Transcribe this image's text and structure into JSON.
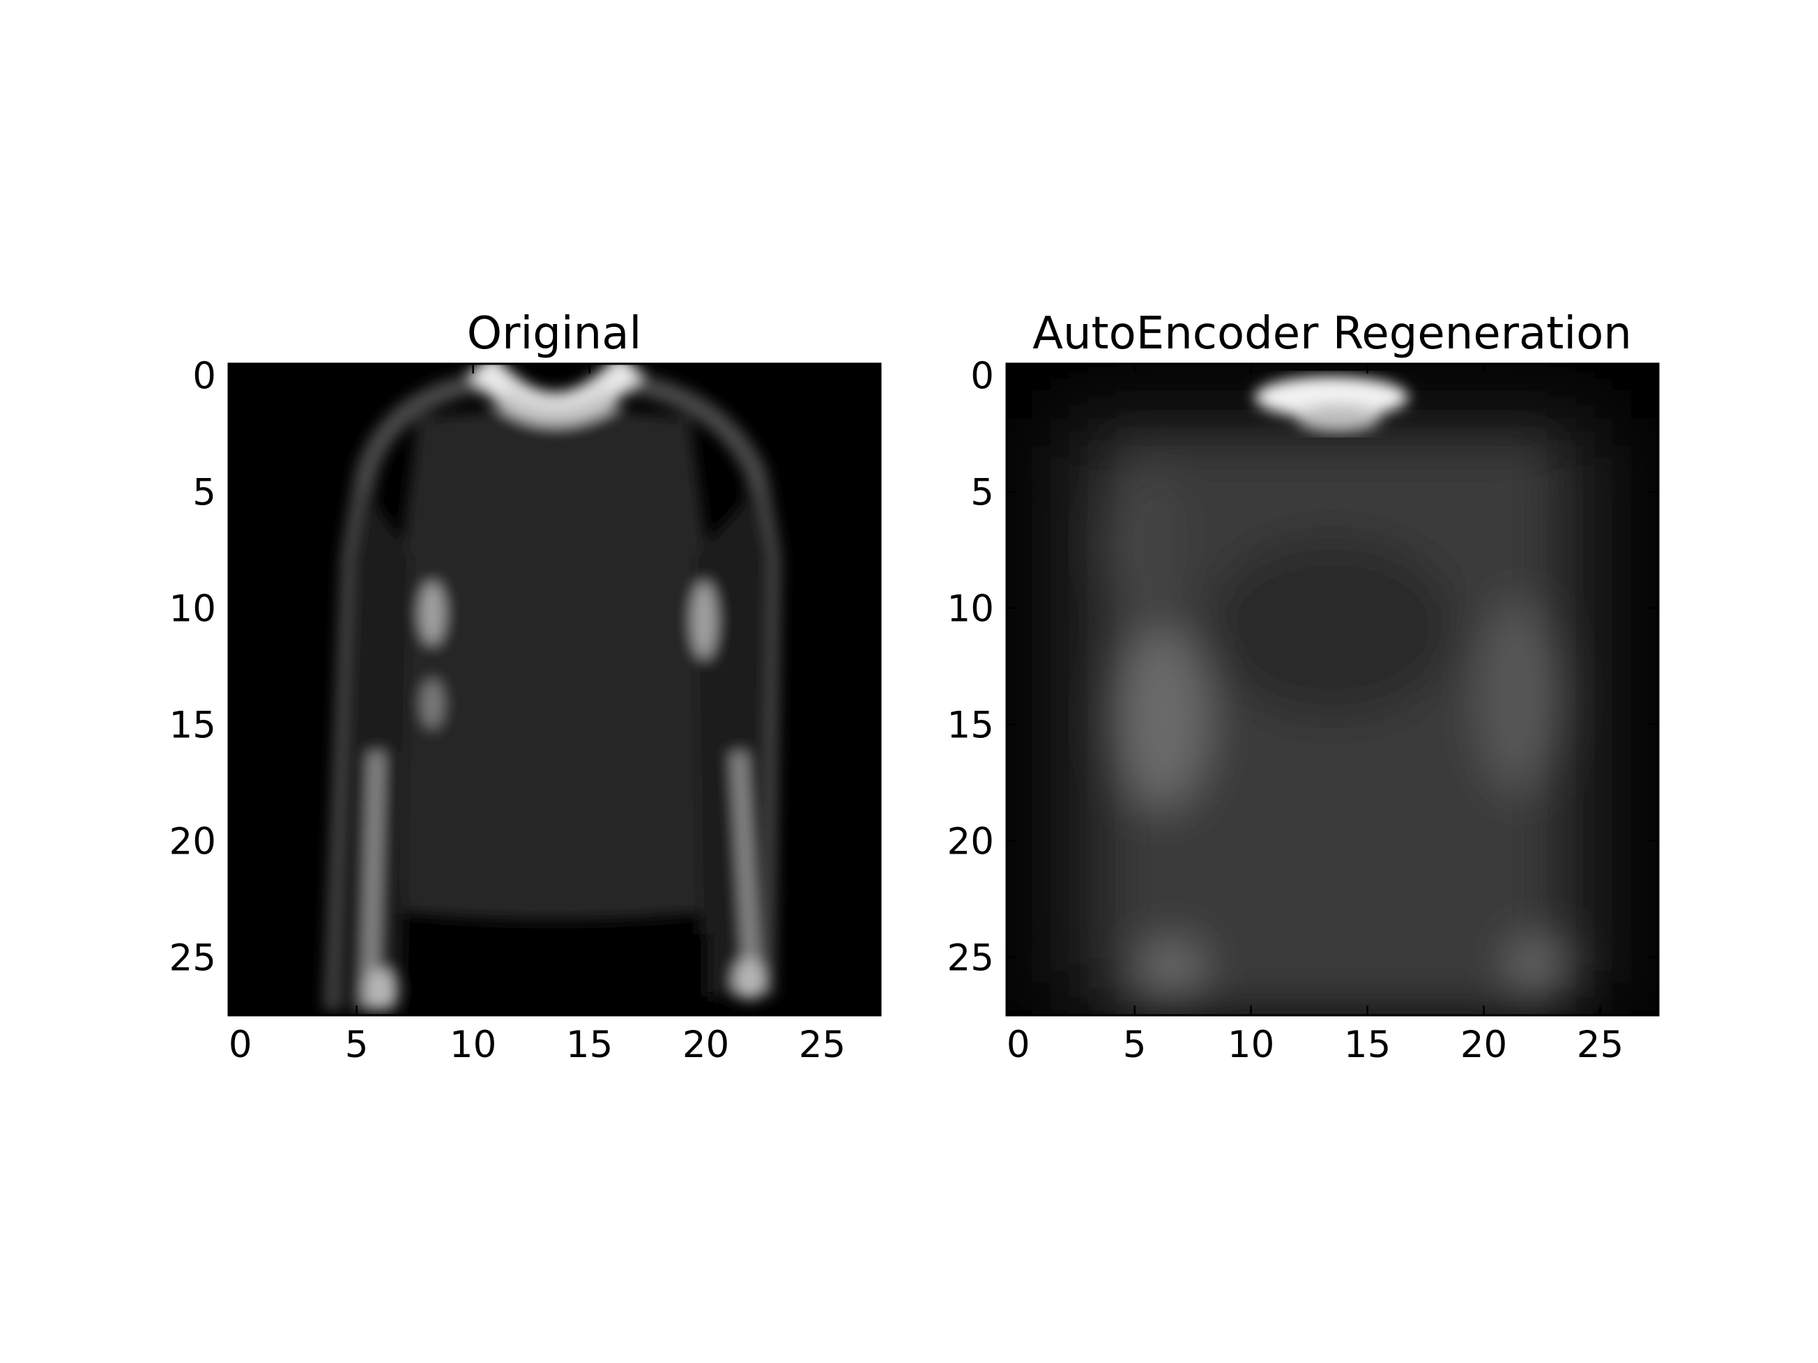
{
  "chart_data": [
    {
      "type": "heatmap",
      "title": "Original",
      "colormap": "gray",
      "grid_size": [
        28,
        28
      ],
      "xlim": [
        -0.5,
        27.5
      ],
      "ylim": [
        27.5,
        -0.5
      ],
      "xticks": [
        0,
        5,
        10,
        15,
        20,
        25
      ],
      "yticks": [
        0,
        5,
        10,
        15,
        20,
        25
      ],
      "xtick_labels": [
        "0",
        "5",
        "10",
        "15",
        "20",
        "25"
      ],
      "ytick_labels": [
        "0",
        "5",
        "10",
        "15",
        "20",
        "25"
      ]
    },
    {
      "type": "heatmap",
      "title": "AutoEncoder Regeneration",
      "colormap": "gray",
      "grid_size": [
        28,
        28
      ],
      "xlim": [
        -0.5,
        27.5
      ],
      "ylim": [
        27.5,
        -0.5
      ],
      "xticks": [
        0,
        5,
        10,
        15,
        20,
        25
      ],
      "yticks": [
        0,
        5,
        10,
        15,
        20,
        25
      ],
      "xtick_labels": [
        "0",
        "5",
        "10",
        "15",
        "20",
        "25"
      ],
      "ytick_labels": [
        "0",
        "5",
        "10",
        "15",
        "20",
        "25"
      ]
    }
  ]
}
